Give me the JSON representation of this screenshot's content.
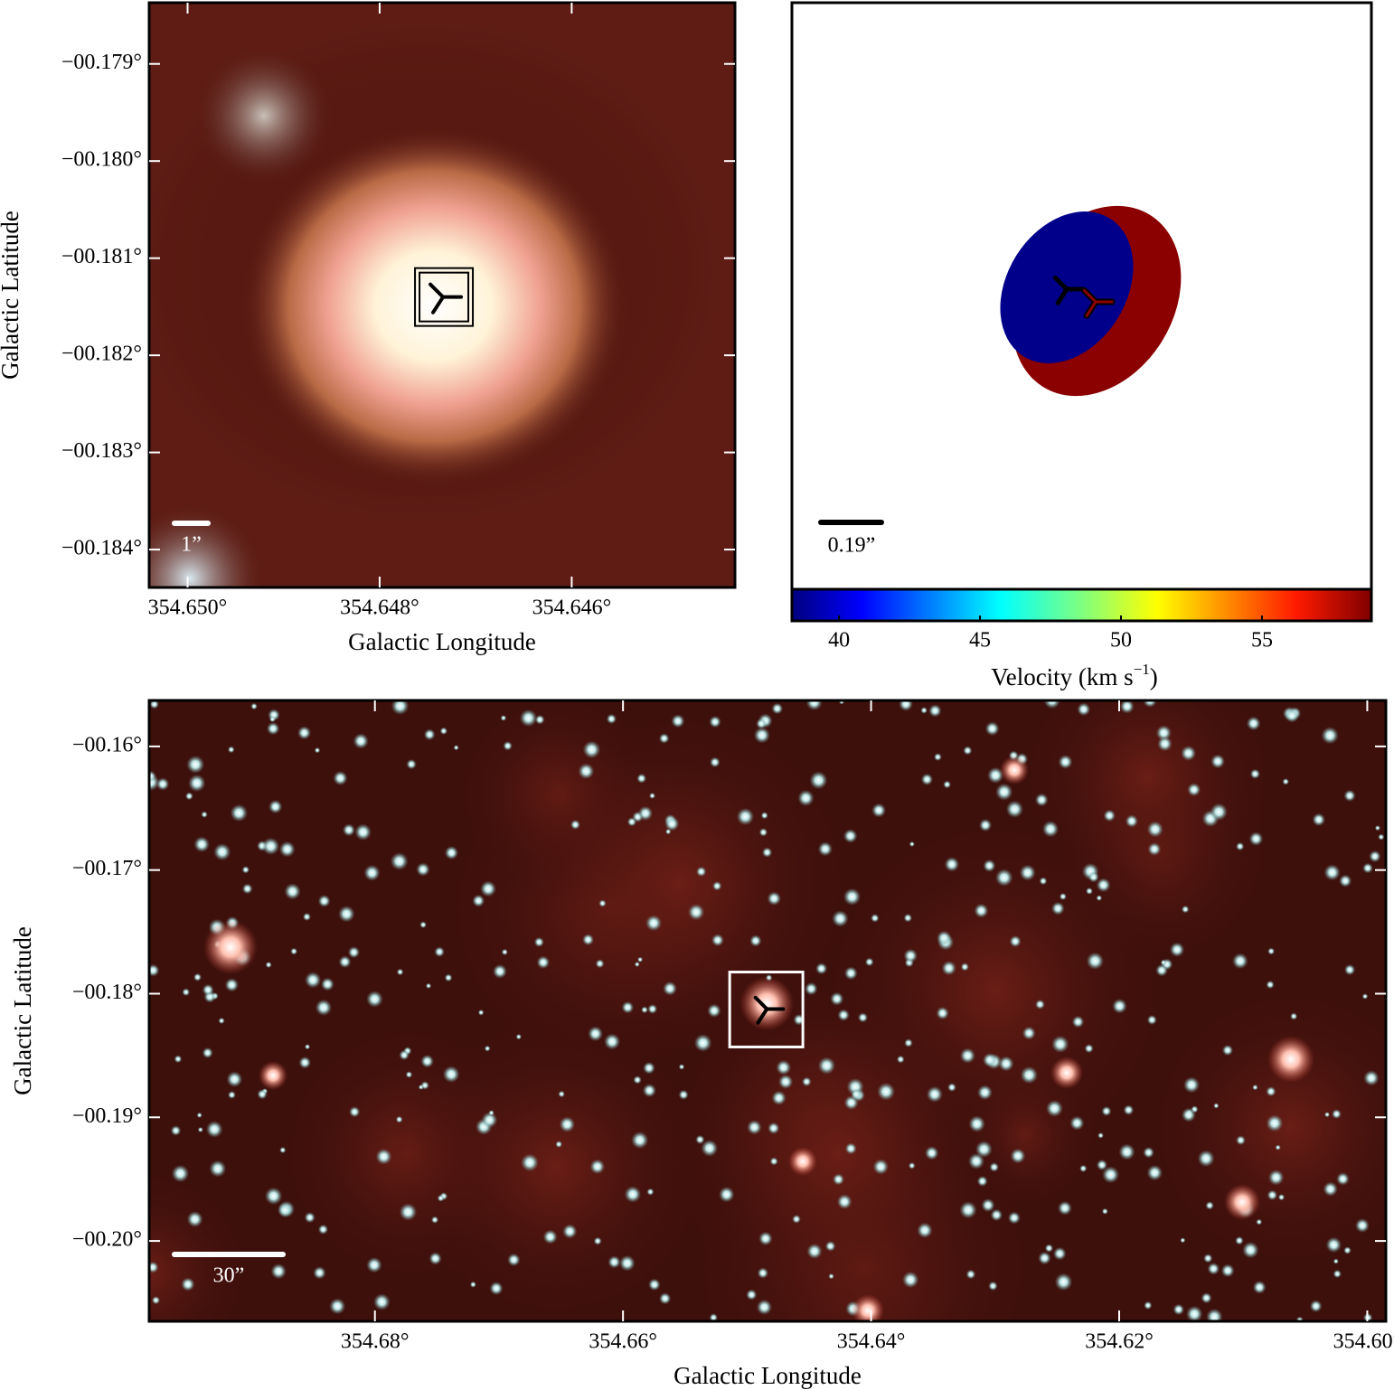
{
  "chart_data": [
    {
      "type": "image",
      "xlabel": "Galactic Longitude",
      "ylabel": "Galactic Latitude",
      "xlim": [
        354.6504,
        354.6443
      ],
      "ylim": [
        -0.18439,
        -0.17837
      ],
      "xticks": [
        {
          "value": 354.65,
          "label": "354.650°"
        },
        {
          "value": 354.648,
          "label": "354.648°"
        },
        {
          "value": 354.646,
          "label": "354.646°"
        }
      ],
      "yticks": [
        {
          "value": -0.179,
          "label": "−00.179°"
        },
        {
          "value": -0.18,
          "label": "−00.180°"
        },
        {
          "value": -0.181,
          "label": "−00.181°"
        },
        {
          "value": -0.182,
          "label": "−00.182°"
        },
        {
          "value": -0.183,
          "label": "−00.183°"
        },
        {
          "value": -0.184,
          "label": "−00.184°"
        }
      ],
      "marker": {
        "x": 354.64734,
        "y": -0.1814
      },
      "scale_bar_label": "1”"
    },
    {
      "type": "ellipses",
      "components": [
        {
          "velocity": 58.5,
          "color": "#8b0000"
        },
        {
          "velocity": 38.8,
          "color": "#00008b"
        }
      ],
      "scale_bar_label": "0.19”",
      "colorbar": {
        "label": "Velocity (km s",
        "label_exponent": "−1",
        "label_end": ")",
        "lim": [
          38.33,
          58.88
        ],
        "ticks": [
          40,
          45,
          50,
          55
        ]
      }
    },
    {
      "type": "image",
      "xlabel": "Galactic Longitude",
      "ylabel": "Galactic Latitude",
      "xlim": [
        354.6982,
        354.5985
      ],
      "ylim": [
        -0.2065,
        -0.15628
      ],
      "xticks": [
        {
          "value": 354.68,
          "label": "354.68°"
        },
        {
          "value": 354.66,
          "label": "354.66°"
        },
        {
          "value": 354.64,
          "label": "354.64°"
        },
        {
          "value": 354.62,
          "label": "354.62°"
        },
        {
          "value": 354.6,
          "label": "354.60°"
        }
      ],
      "yticks": [
        {
          "value": -0.16,
          "label": "−00.16°"
        },
        {
          "value": -0.17,
          "label": "−00.17°"
        },
        {
          "value": -0.18,
          "label": "−00.18°"
        },
        {
          "value": -0.19,
          "label": "−00.19°"
        },
        {
          "value": -0.2,
          "label": "−00.20°"
        }
      ],
      "box": {
        "xlim": [
          354.6514,
          354.6455
        ],
        "ylim": [
          -0.18431,
          -0.17825
        ]
      },
      "marker": {
        "x": 354.6484,
        "y": -0.18124
      },
      "scale_bar_label": "30”"
    }
  ]
}
